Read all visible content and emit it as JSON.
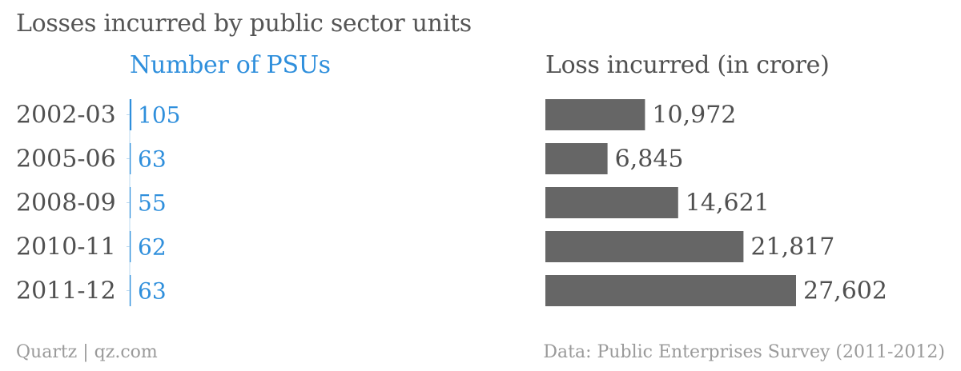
{
  "title": "Losses incurred by public sector units",
  "colors": {
    "psu": "#2f8fdc",
    "bar": "#666666",
    "label": "#505050",
    "axis": "#b8d8f0",
    "footer": "#9a9a9a"
  },
  "chart_data": [
    {
      "type": "bar",
      "title": "Number of PSUs",
      "categories": [
        "2002-03",
        "2005-06",
        "2008-09",
        "2010-11",
        "2011-12"
      ],
      "values": [
        105,
        63,
        55,
        62,
        63
      ],
      "value_labels": [
        "105",
        "63",
        "55",
        "62",
        "63"
      ]
    },
    {
      "type": "bar",
      "orientation": "horizontal",
      "title": "Loss incurred (in crore)",
      "categories": [
        "2002-03",
        "2005-06",
        "2008-09",
        "2010-11",
        "2011-12"
      ],
      "values": [
        10972,
        6845,
        14621,
        21817,
        27602
      ],
      "value_labels": [
        "10,972",
        "6,845",
        "14,621",
        "21,817",
        "27,602"
      ]
    }
  ],
  "footer": {
    "left": "Quartz | qz.com",
    "right": "Data: Public Enterprises Survey (2011-2012)"
  }
}
